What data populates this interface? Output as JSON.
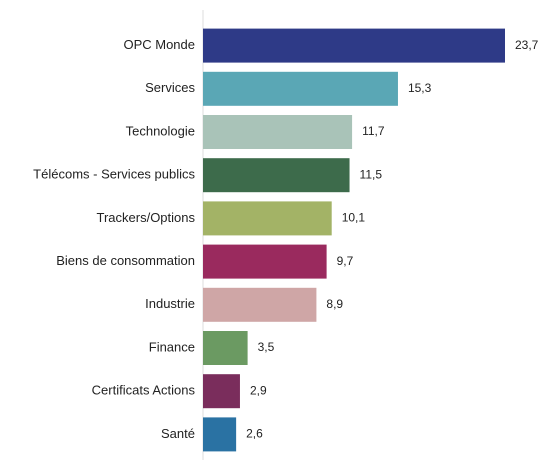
{
  "chart_data": {
    "type": "barh",
    "categories": [
      "OPC Monde",
      "Services",
      "Technologie",
      "Télécoms - Services publics",
      "Trackers/Options",
      "Biens de consommation",
      "Industrie",
      "Finance",
      "Certificats Actions",
      "Santé"
    ],
    "values": [
      23.7,
      15.3,
      11.7,
      11.5,
      10.1,
      9.7,
      8.9,
      3.5,
      2.9,
      2.6
    ],
    "value_labels": [
      "23,7",
      "15,3",
      "11,7",
      "11,5",
      "10,1",
      "9,7",
      "8,9",
      "3,5",
      "2,9",
      "2,6"
    ],
    "colors": [
      "#2e3a87",
      "#5aa7b5",
      "#a9c3b8",
      "#3d6b4b",
      "#a3b366",
      "#9a2a5e",
      "#cfa6a6",
      "#6b9a62",
      "#7a2d5c",
      "#2a72a3"
    ]
  }
}
